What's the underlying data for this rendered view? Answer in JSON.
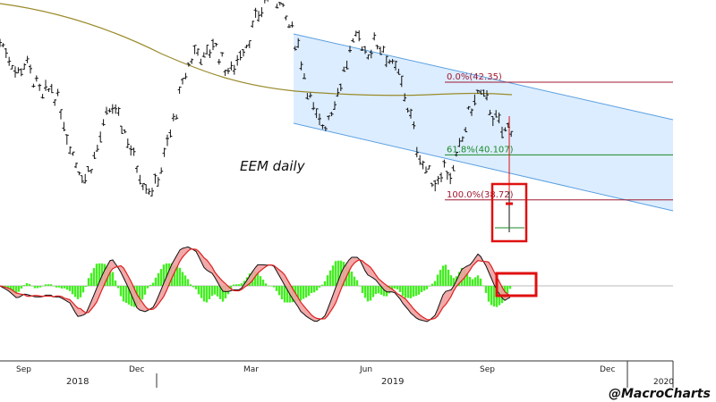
{
  "chart_data": {
    "type": "line",
    "title": "EEM daily",
    "watermark": "@MacroCharts",
    "x_tick_labels": [
      "Sep",
      "Dec",
      "Mar",
      "Jun",
      "Sep",
      "Dec",
      "2020"
    ],
    "year_labels": [
      "2018",
      "2019"
    ],
    "fib_levels": [
      {
        "label": "0.0%(42.35)",
        "price": 42.35,
        "color": "#a01830"
      },
      {
        "label": "61.8%(40.107)",
        "price": 40.107,
        "color": "#1a8a2a"
      },
      {
        "label": "100.0%(38.72)",
        "price": 38.72,
        "color": "#a01830"
      }
    ],
    "price_series_approx": [
      43.6,
      43.2,
      42.6,
      43.0,
      42.4,
      41.8,
      42.2,
      41.6,
      40.6,
      39.8,
      39.4,
      40.0,
      40.8,
      41.6,
      41.2,
      40.6,
      39.8,
      39.2,
      39.0,
      39.8,
      40.8,
      41.8,
      42.8,
      43.4,
      43.0,
      43.6,
      43.0,
      42.6,
      43.2,
      43.6,
      44.2,
      44.8,
      45.2,
      44.6,
      44.0,
      43.4,
      42.2,
      41.2,
      41.0,
      41.6,
      42.4,
      43.2,
      43.8,
      43.2,
      43.6,
      43.4,
      42.8,
      42.4,
      41.4,
      40.2,
      39.6,
      39.2,
      39.8,
      39.4,
      40.4,
      41.4,
      42.0,
      41.8,
      41.2,
      40.8,
      41.0
    ]
  },
  "annotations": {
    "colors": {
      "channel_fill": "#d6eaff",
      "channel_line": "#5aa0e0",
      "moving_average": "#9a8a2a",
      "highlight_box": "#e01010",
      "macd_fast": "#111111",
      "macd_slow": "#e02020",
      "histogram": "#44ee22"
    }
  }
}
